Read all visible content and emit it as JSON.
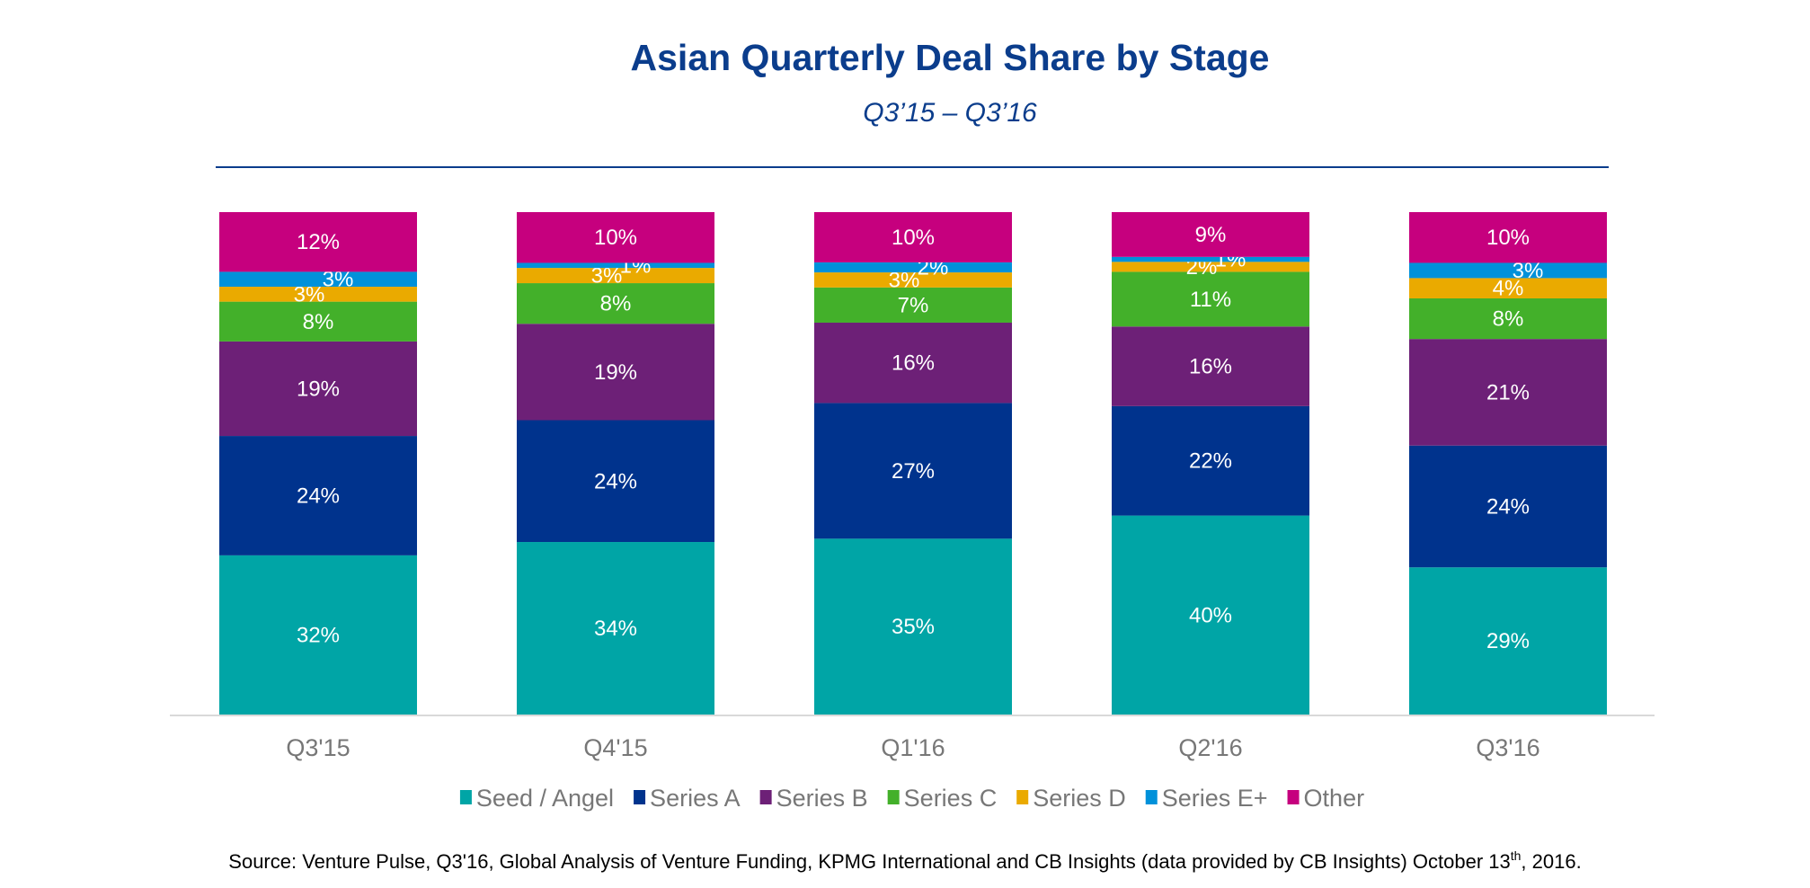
{
  "chart_data": {
    "type": "bar",
    "stacked": true,
    "normalized": true,
    "title": "Asian Quarterly Deal Share by Stage",
    "subtitle": "Q3’15 – Q3’16",
    "xlabel": "",
    "ylabel": "",
    "categories": [
      "Q3'15",
      "Q4'15",
      "Q1'16",
      "Q2'16",
      "Q3'16"
    ],
    "series": [
      {
        "name": "Seed / Angel",
        "color": "#00A5A6",
        "values": [
          32,
          34,
          35,
          40,
          29
        ]
      },
      {
        "name": "Series A",
        "color": "#00338D",
        "values": [
          24,
          24,
          27,
          22,
          24
        ]
      },
      {
        "name": "Series B",
        "color": "#6D2077",
        "values": [
          19,
          19,
          16,
          16,
          21
        ]
      },
      {
        "name": "Series C",
        "color": "#43B02A",
        "values": [
          8,
          8,
          7,
          11,
          8
        ]
      },
      {
        "name": "Series D",
        "color": "#EAAA00",
        "values": [
          3,
          3,
          3,
          2,
          4
        ]
      },
      {
        "name": "Series E+",
        "color": "#0091DA",
        "values": [
          3,
          1,
          2,
          1,
          3
        ]
      },
      {
        "name": "Other",
        "color": "#C6007E",
        "values": [
          12,
          10,
          10,
          9,
          10
        ]
      }
    ],
    "value_suffix": "%",
    "legend_position": "bottom",
    "grid": false
  },
  "source": {
    "prefix": "Source: Venture Pulse, Q3'16, Global Analysis of Venture Funding, KPMG International and CB Insights (data provided by CB Insights) October 13",
    "sup": "th",
    "suffix": ", 2016."
  }
}
